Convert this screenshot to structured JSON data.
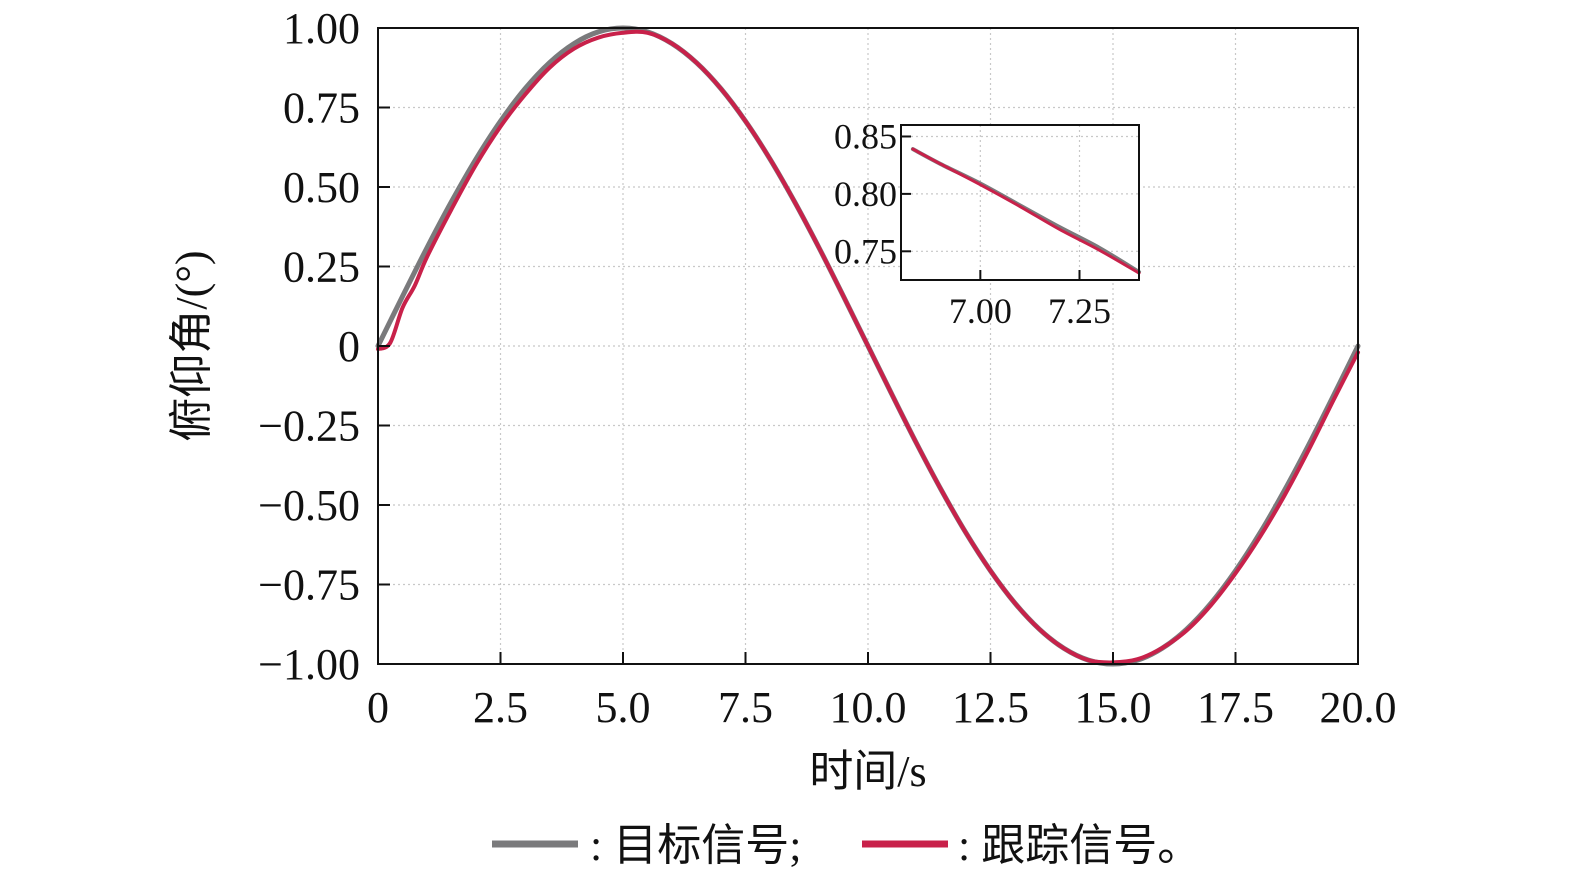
{
  "chart_data": {
    "type": "line",
    "xlabel": "时间/s",
    "ylabel": "俯仰角/(°)",
    "xlim": [
      0,
      20
    ],
    "ylim": [
      -1,
      1
    ],
    "grid": true,
    "x_ticks": [
      0,
      2.5,
      5,
      7.5,
      10,
      12.5,
      15,
      17.5,
      20
    ],
    "x_tick_labels": [
      "0",
      "2.5",
      "5.0",
      "7.5",
      "10.0",
      "12.5",
      "15.0",
      "17.5",
      "20.0"
    ],
    "y_ticks": [
      1,
      0.75,
      0.5,
      0.25,
      0,
      -0.25,
      -0.5,
      -0.75,
      -1
    ],
    "y_tick_labels": [
      "1.00",
      "0.75",
      "0.50",
      "0.25",
      "0",
      "−0.25",
      "−0.50",
      "−0.75",
      "−1.00"
    ],
    "legend_position": "bottom",
    "series": [
      {
        "name": "目标信号",
        "legend_label": ": 目标信号;",
        "color": "#7a7a7c",
        "x": [
          0,
          0.5,
          1.0,
          1.5,
          2.0,
          2.5,
          3.0,
          3.5,
          4.0,
          4.5,
          5.0,
          5.5,
          6.0,
          6.5,
          7.0,
          7.5,
          8.0,
          8.5,
          9.0,
          9.5,
          10.0,
          10.5,
          11.0,
          11.5,
          12.0,
          12.5,
          13.0,
          13.5,
          14.0,
          14.5,
          15.0,
          15.5,
          16.0,
          16.5,
          17.0,
          17.5,
          18.0,
          18.5,
          19.0,
          19.5,
          20.0
        ],
        "y": [
          0,
          0.156,
          0.309,
          0.454,
          0.588,
          0.707,
          0.809,
          0.891,
          0.951,
          0.988,
          1.0,
          0.988,
          0.951,
          0.891,
          0.809,
          0.707,
          0.588,
          0.454,
          0.309,
          0.156,
          0,
          -0.156,
          -0.309,
          -0.454,
          -0.588,
          -0.707,
          -0.809,
          -0.891,
          -0.951,
          -0.988,
          -1.0,
          -0.988,
          -0.951,
          -0.891,
          -0.809,
          -0.707,
          -0.588,
          -0.454,
          -0.309,
          -0.156,
          0
        ]
      },
      {
        "name": "跟踪信号",
        "legend_label": ": 跟踪信号。",
        "color": "#c8214a",
        "x": [
          0,
          0.25,
          0.5,
          0.75,
          1.0,
          1.5,
          2.0,
          2.5,
          3.0,
          3.5,
          4.0,
          4.5,
          5.0,
          5.5,
          6.0,
          6.5,
          7.0,
          7.5,
          8.0,
          8.5,
          9.0,
          9.5,
          10.0,
          10.5,
          11.0,
          11.5,
          12.0,
          12.5,
          13.0,
          13.5,
          14.0,
          14.5,
          15.0,
          15.5,
          16.0,
          16.5,
          17.0,
          17.5,
          18.0,
          18.5,
          19.0,
          19.5,
          20.0
        ],
        "y": [
          -0.01,
          0.01,
          0.12,
          0.19,
          0.28,
          0.43,
          0.57,
          0.69,
          0.79,
          0.875,
          0.935,
          0.97,
          0.985,
          0.985,
          0.951,
          0.891,
          0.809,
          0.707,
          0.588,
          0.454,
          0.309,
          0.156,
          0,
          -0.156,
          -0.309,
          -0.454,
          -0.588,
          -0.707,
          -0.809,
          -0.891,
          -0.951,
          -0.988,
          -0.995,
          -0.985,
          -0.95,
          -0.895,
          -0.815,
          -0.715,
          -0.6,
          -0.47,
          -0.325,
          -0.17,
          -0.02
        ]
      }
    ],
    "inset": {
      "xlim": [
        6.8,
        7.4
      ],
      "ylim": [
        0.725,
        0.86
      ],
      "x_ticks": [
        7.0,
        7.25
      ],
      "x_tick_labels": [
        "7.00",
        "7.25"
      ],
      "y_ticks": [
        0.85,
        0.8,
        0.75
      ],
      "y_tick_labels": [
        "0.85",
        "0.80",
        "0.75"
      ],
      "series": [
        {
          "name": "目标信号",
          "color": "#7a7a7c",
          "x": [
            6.83,
            6.9,
            7.0,
            7.1,
            7.2,
            7.3,
            7.4
          ],
          "y": [
            0.839,
            0.826,
            0.809,
            0.79,
            0.771,
            0.753,
            0.732
          ]
        },
        {
          "name": "跟踪信号",
          "color": "#c8214a",
          "x": [
            6.83,
            6.9,
            7.0,
            7.1,
            7.2,
            7.3,
            7.4
          ],
          "y": [
            0.839,
            0.826,
            0.808,
            0.789,
            0.769,
            0.751,
            0.731
          ]
        }
      ]
    }
  }
}
